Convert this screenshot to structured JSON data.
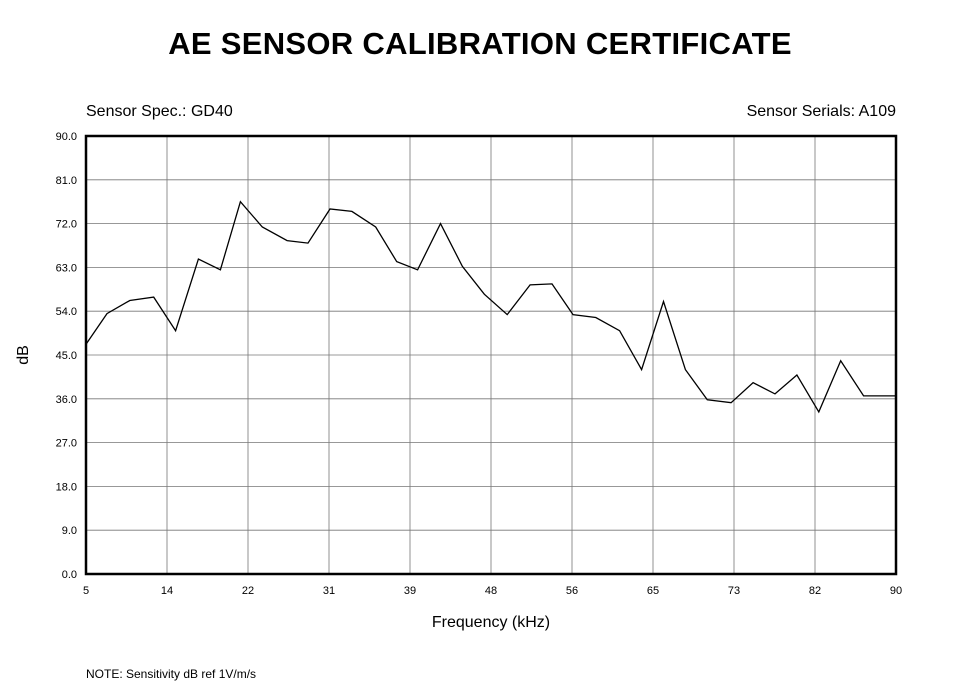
{
  "title": "AE SENSOR CALIBRATION CERTIFICATE",
  "sensor_spec_label": "Sensor Spec.: GD40",
  "sensor_serials_label": "Sensor Serials: A109",
  "note": "NOTE:  Sensitivity dB ref 1V/m/s",
  "chart_data": {
    "type": "line",
    "xlabel": "Frequency (kHz)",
    "ylabel": "dB",
    "xlim": [
      5,
      90
    ],
    "ylim": [
      0,
      90
    ],
    "x_ticks": [
      "5",
      "14",
      "22",
      "31",
      "39",
      "48",
      "56",
      "65",
      "73",
      "82",
      "90"
    ],
    "y_ticks": [
      "0.0",
      "9.0",
      "18.0",
      "27.0",
      "36.0",
      "45.0",
      "54.0",
      "63.0",
      "72.0",
      "81.0",
      "90.0"
    ],
    "grid": true,
    "series": [
      {
        "x": [
          5,
          7.2,
          9.6,
          12.1,
          14.4,
          16.8,
          19.1,
          21.2,
          23.5,
          26.1,
          28.3,
          30.6,
          32.9,
          35.4,
          37.6,
          39.8,
          42.2,
          44.5,
          46.8,
          49.2,
          51.6,
          53.9,
          56.1,
          58.5,
          61.0,
          63.3,
          65.6,
          67.9,
          70.2,
          72.7,
          75.0,
          77.3,
          79.6,
          81.9,
          84.2,
          86.6,
          88.7,
          90
        ],
        "y": [
          47.2,
          53.5,
          56.2,
          56.9,
          50.0,
          64.7,
          62.5,
          76.5,
          71.3,
          68.5,
          68.0,
          75.0,
          74.5,
          71.3,
          64.2,
          62.5,
          72.0,
          63.2,
          57.5,
          53.3,
          59.4,
          59.6,
          53.3,
          52.7,
          50.0,
          42.0,
          56.0,
          42.0,
          35.8,
          35.2,
          39.3,
          37.0,
          40.9,
          33.3,
          43.8,
          36.6,
          36.6,
          36.6
        ]
      }
    ]
  }
}
